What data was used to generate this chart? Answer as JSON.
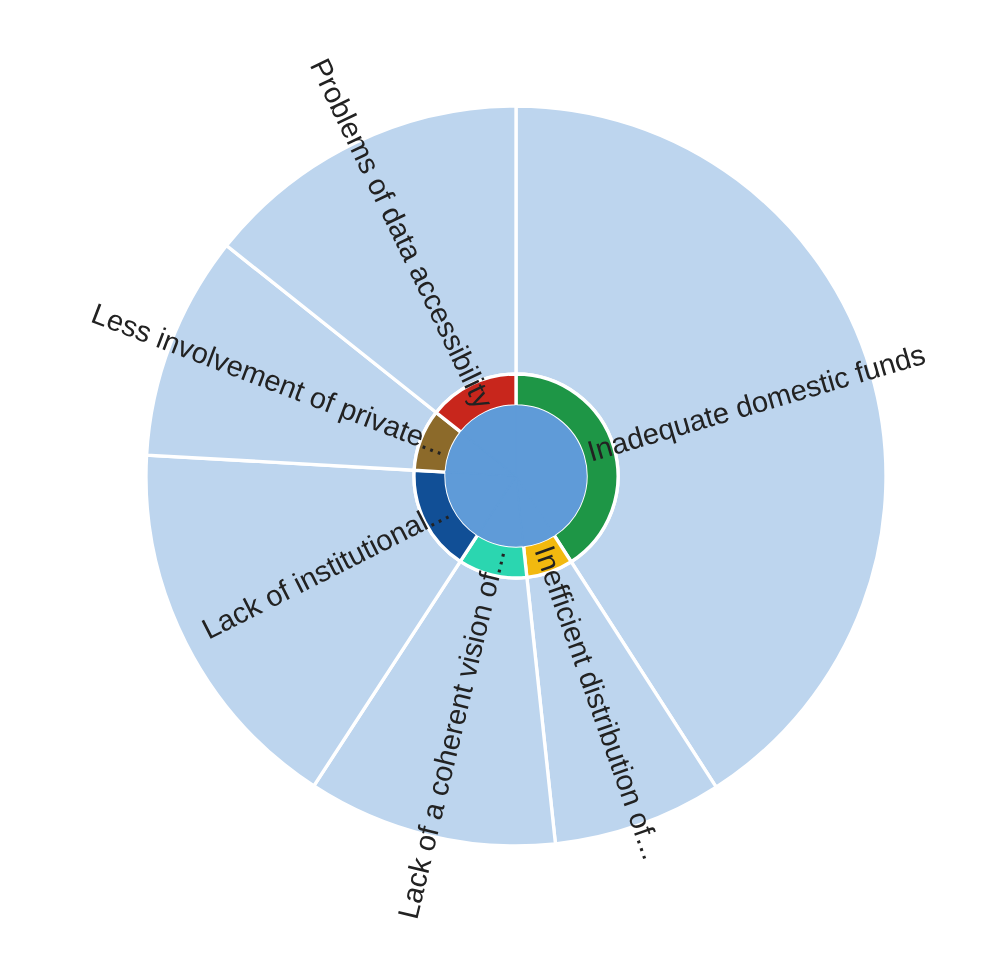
{
  "chart_data": {
    "type": "donut",
    "categories": [
      "Inadequate domestic funds",
      "Inefficient distribution of...",
      "Lack of a coherent vision of...",
      "Lack of institutional...",
      "Less involvement of private...",
      "Problems of data accessibility"
    ],
    "series": [
      {
        "values": [
          40.9,
          7.4,
          10.9,
          16.7,
          9.8,
          14.3
        ],
        "color": "#bdd5ee"
      },
      {
        "values": [
          40.9,
          7.4,
          10.9,
          16.7,
          9.8,
          14.3
        ],
        "colors": [
          "#1e9646",
          "#f2b90f",
          "#2bd6b0",
          "#114f96",
          "#8c6a2a",
          "#c8261c"
        ]
      },
      {
        "values": [
          40.9,
          7.4,
          10.9,
          16.7,
          9.8,
          14.3
        ],
        "color": "#5f9bd8"
      }
    ],
    "legend": false
  }
}
